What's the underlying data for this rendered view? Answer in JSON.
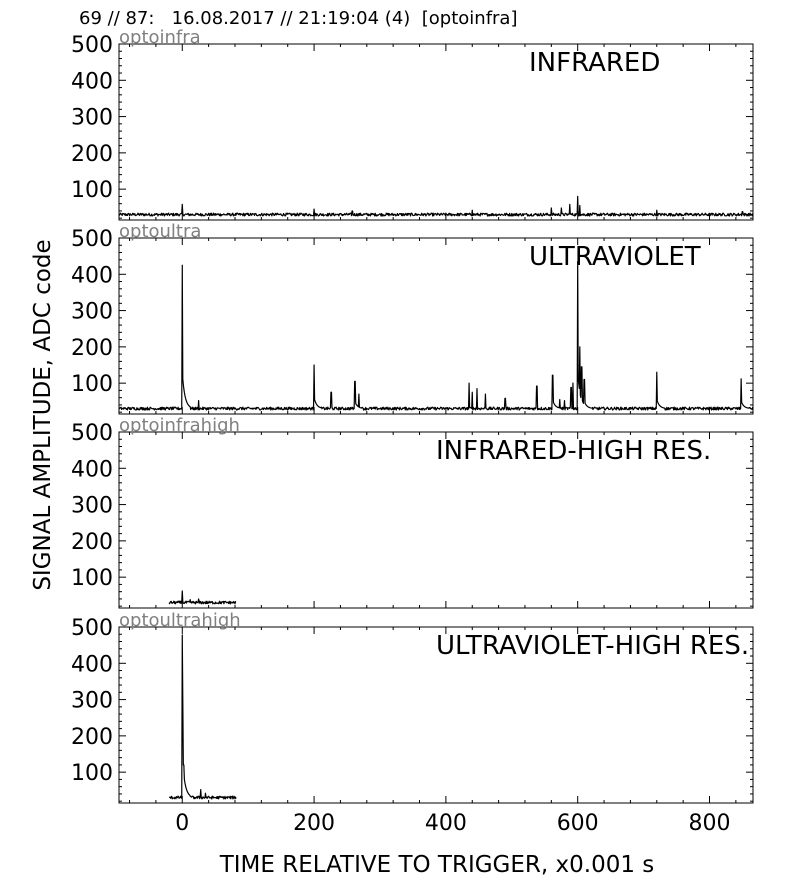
{
  "header": {
    "text": "69 // 87:   16.08.2017 // 21:19:04 (4)  [optoinfra]"
  },
  "chart_data": {
    "type": "line",
    "ylabel": "SIGNAL AMPLITUDE,  ADC code",
    "xlabel": "TIME RELATIVE TO TRIGGER,   x0.001 s",
    "xlim": [
      -96,
      866
    ],
    "ylim": [
      15,
      500
    ],
    "x_ticks": [
      0,
      200,
      400,
      600,
      800
    ],
    "y_ticks": [
      100,
      200,
      300,
      400,
      500
    ],
    "grid": false,
    "panels": [
      {
        "channel": "optoinfra",
        "title": "INFRARED",
        "baseline": 30,
        "x_range": [
          -96,
          866
        ],
        "peaks": [
          [
            0,
            58
          ],
          [
            200,
            45
          ],
          [
            258,
            40
          ],
          [
            440,
            42
          ],
          [
            560,
            48
          ],
          [
            575,
            48
          ],
          [
            588,
            58
          ],
          [
            600,
            80
          ],
          [
            603,
            55
          ],
          [
            720,
            42
          ],
          [
            850,
            38
          ]
        ]
      },
      {
        "channel": "optoultra",
        "title": "ULTRAVIOLET",
        "baseline": 30,
        "x_range": [
          -96,
          866
        ],
        "peaks": [
          [
            0,
            425
          ],
          [
            25,
            52
          ],
          [
            200,
            150
          ],
          [
            226,
            75
          ],
          [
            262,
            105
          ],
          [
            268,
            70
          ],
          [
            435,
            100
          ],
          [
            440,
            75
          ],
          [
            447,
            85
          ],
          [
            460,
            70
          ],
          [
            490,
            58
          ],
          [
            538,
            92
          ],
          [
            562,
            122
          ],
          [
            573,
            55
          ],
          [
            580,
            52
          ],
          [
            590,
            88
          ],
          [
            593,
            100
          ],
          [
            600,
            435
          ],
          [
            603,
            200
          ],
          [
            606,
            145
          ],
          [
            610,
            110
          ],
          [
            720,
            130
          ],
          [
            848,
            112
          ]
        ]
      },
      {
        "channel": "optoinfrahigh",
        "title": "INFRARED-HIGH RES.",
        "baseline": 30,
        "x_range": [
          -20,
          82
        ],
        "peaks": [
          [
            0,
            62
          ],
          [
            12,
            38
          ],
          [
            25,
            40
          ]
        ]
      },
      {
        "channel": "optoultrahigh",
        "title": "ULTRAVIOLET-HIGH RES.",
        "baseline": 30,
        "x_range": [
          -20,
          82
        ],
        "peaks": [
          [
            0,
            478
          ],
          [
            1,
            300
          ],
          [
            2,
            120
          ],
          [
            28,
            52
          ],
          [
            35,
            42
          ]
        ]
      }
    ]
  }
}
